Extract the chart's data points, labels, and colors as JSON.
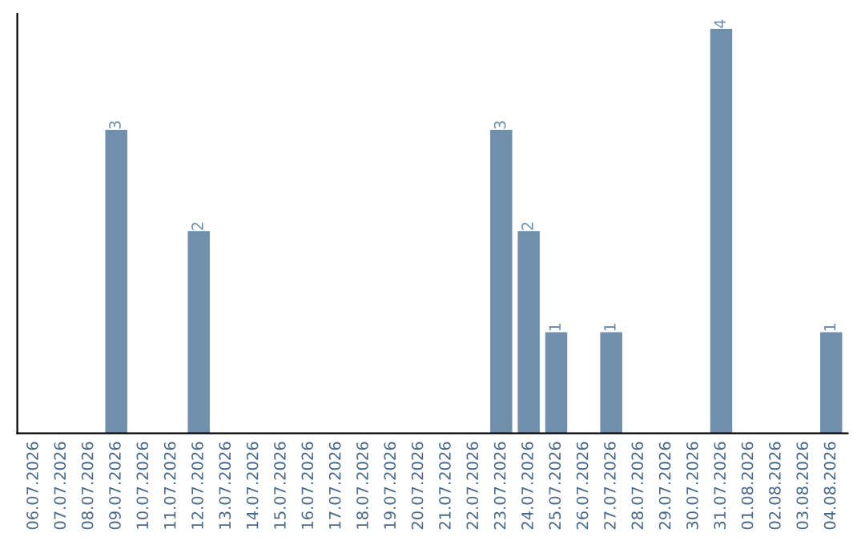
{
  "chart_data": {
    "type": "bar",
    "categories": [
      "06.07.2026",
      "07.07.2026",
      "08.07.2026",
      "09.07.2026",
      "10.07.2026",
      "11.07.2026",
      "12.07.2026",
      "13.07.2026",
      "14.07.2026",
      "15.07.2026",
      "16.07.2026",
      "17.07.2026",
      "18.07.2026",
      "19.07.2026",
      "20.07.2026",
      "21.07.2026",
      "22.07.2026",
      "23.07.2026",
      "24.07.2026",
      "25.07.2026",
      "26.07.2026",
      "27.07.2026",
      "28.07.2026",
      "29.07.2026",
      "30.07.2026",
      "31.07.2026",
      "01.08.2026",
      "02.08.2026",
      "03.08.2026",
      "04.08.2026"
    ],
    "values": [
      0,
      0,
      0,
      3,
      0,
      0,
      2,
      0,
      0,
      0,
      0,
      0,
      0,
      0,
      0,
      0,
      0,
      3,
      2,
      1,
      0,
      1,
      0,
      0,
      0,
      4,
      0,
      0,
      0,
      1
    ],
    "value_labels": [
      null,
      null,
      null,
      "3",
      null,
      null,
      "2",
      null,
      null,
      null,
      null,
      null,
      null,
      null,
      null,
      null,
      null,
      "3",
      "2",
      "1",
      null,
      "1",
      null,
      null,
      null,
      "4",
      null,
      null,
      null,
      "1"
    ],
    "color": "#6f8fab",
    "ylim": [
      0,
      4.15
    ],
    "tick_labels": "x",
    "grid": false,
    "legend": false
  }
}
